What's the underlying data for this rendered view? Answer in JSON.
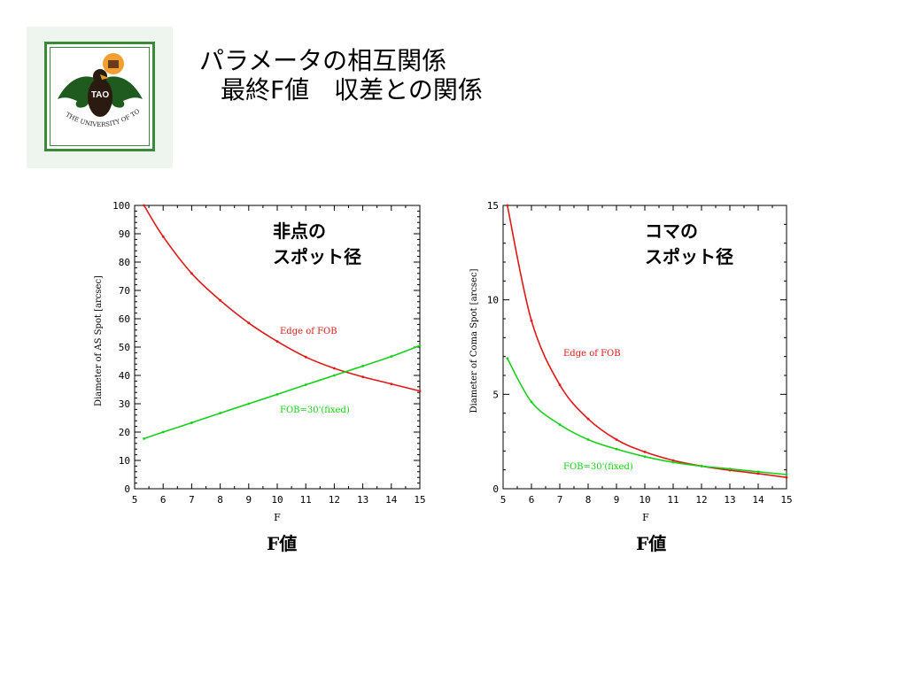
{
  "logo": {
    "badge_text": "TAO",
    "ring_text": "THE UNIVERSITY OF TOKYO"
  },
  "title": {
    "line1": "パラメータの相互関係",
    "line2": "最終F値　収差との関係"
  },
  "colors": {
    "red": "#e01818",
    "green": "#18d018",
    "logo_green": "#3a8a3a"
  },
  "charts": [
    {
      "annotation_lines": [
        "非点の",
        "スポット径"
      ],
      "f_caption": "F値"
    },
    {
      "annotation_lines": [
        "コマの",
        "スポット径"
      ],
      "f_caption": "F値"
    }
  ],
  "chart_data": [
    {
      "type": "line",
      "xlabel": "F",
      "ylabel": "Diameter of AS Spot [arcsec]",
      "xlim": [
        5,
        15
      ],
      "ylim": [
        0,
        100
      ],
      "xticks": [
        "5",
        "6",
        "7",
        "8",
        "9",
        "10",
        "11",
        "12",
        "13",
        "14",
        "15"
      ],
      "yticks": [
        "0",
        "10",
        "20",
        "30",
        "40",
        "50",
        "60",
        "70",
        "80",
        "90",
        "100"
      ],
      "x": [
        5.33,
        6,
        7,
        8,
        9,
        10,
        11,
        12,
        13,
        14,
        15
      ],
      "series": [
        {
          "name": "Edge of FOB",
          "color": "#e01818",
          "values": [
            100,
            89,
            76,
            66.5,
            58.5,
            52,
            46.5,
            42.5,
            39.5,
            37,
            34.5
          ]
        },
        {
          "name": "FOB=30'(fixed)",
          "color": "#18d018",
          "values": [
            17.7,
            20,
            23.3,
            26.7,
            30,
            33.3,
            36.7,
            40,
            43.3,
            46.7,
            50.5
          ]
        }
      ],
      "legend_position": "inline"
    },
    {
      "type": "line",
      "xlabel": "F",
      "ylabel": "Diameter of Coma Spot [arcsec]",
      "xlim": [
        5,
        15
      ],
      "ylim": [
        0,
        15
      ],
      "xticks": [
        "5",
        "6",
        "7",
        "8",
        "9",
        "10",
        "11",
        "12",
        "13",
        "14",
        "15"
      ],
      "yticks": [
        "0",
        "5",
        "10",
        "15"
      ],
      "x": [
        5.15,
        6,
        7,
        8,
        9,
        10,
        11,
        12,
        13,
        14,
        15
      ],
      "series": [
        {
          "name": "Edge of FOB",
          "color": "#e01818",
          "values": [
            15,
            8.9,
            5.5,
            3.7,
            2.6,
            1.95,
            1.5,
            1.2,
            0.98,
            0.8,
            0.6
          ]
        },
        {
          "name": "FOB=30'(fixed)",
          "color": "#18d018",
          "values": [
            6.9,
            4.6,
            3.4,
            2.6,
            2.1,
            1.7,
            1.4,
            1.2,
            1.05,
            0.9,
            0.75
          ]
        }
      ],
      "legend_position": "inline"
    }
  ]
}
